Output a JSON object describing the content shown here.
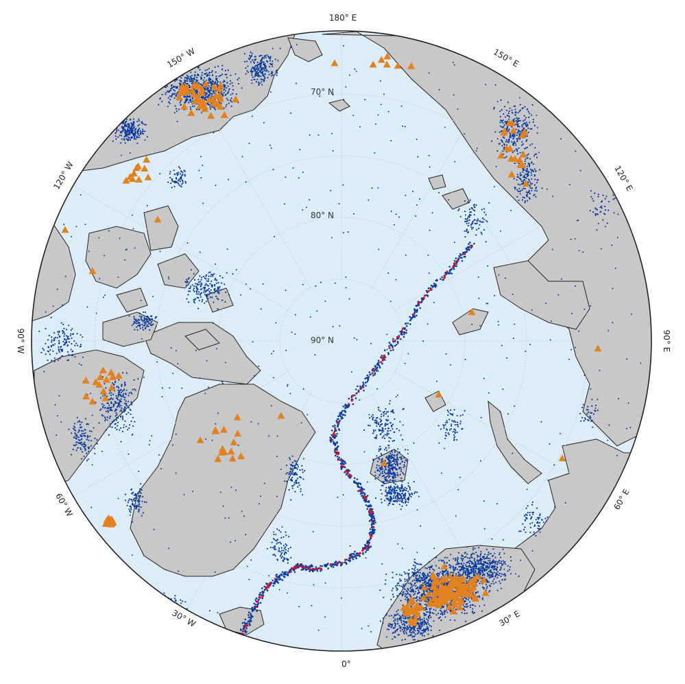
{
  "colors": {
    "ocean": "#dcedf8",
    "land": "#c8c8c8",
    "coast": "#222222",
    "earthquake": "#0a3a9e",
    "seismic_highlight": "#e0101e",
    "station": "#e2811f",
    "grid": "#b9c4cc"
  },
  "longitude_labels": [
    {
      "text": "180° E",
      "name": "lon-label-180e"
    },
    {
      "text": "150° E",
      "name": "lon-label-150e"
    },
    {
      "text": "120° E",
      "name": "lon-label-120e"
    },
    {
      "text": "90° E",
      "name": "lon-label-90e"
    },
    {
      "text": "60° E",
      "name": "lon-label-60e"
    },
    {
      "text": "30° E",
      "name": "lon-label-30e"
    },
    {
      "text": "0°",
      "name": "lon-label-0"
    },
    {
      "text": "30° W",
      "name": "lon-label-30w"
    },
    {
      "text": "60° W",
      "name": "lon-label-60w"
    },
    {
      "text": "90° W",
      "name": "lon-label-90w"
    },
    {
      "text": "120° W",
      "name": "lon-label-120w"
    },
    {
      "text": "150° W",
      "name": "lon-label-150w"
    }
  ],
  "latitude_labels": [
    {
      "text": "70° N",
      "name": "lat-label-70n"
    },
    {
      "text": "80° N",
      "name": "lat-label-80n"
    },
    {
      "text": "90° N",
      "name": "lat-label-90n"
    }
  ]
}
